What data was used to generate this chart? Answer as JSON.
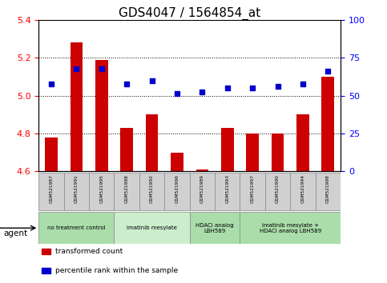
{
  "title": "GDS4047 / 1564854_at",
  "samples": [
    "GSM521987",
    "GSM521991",
    "GSM521995",
    "GSM521988",
    "GSM521992",
    "GSM521996",
    "GSM521989",
    "GSM521993",
    "GSM521997",
    "GSM521990",
    "GSM521994",
    "GSM521998"
  ],
  "bar_values": [
    4.78,
    5.28,
    5.19,
    4.83,
    4.9,
    4.7,
    4.61,
    4.83,
    4.8,
    4.8,
    4.9,
    5.1
  ],
  "scatter_values": [
    5.06,
    5.14,
    5.14,
    5.06,
    5.08,
    5.01,
    5.02,
    5.04,
    5.04,
    5.05,
    5.06,
    5.13
  ],
  "ylim": [
    4.6,
    5.4
  ],
  "yticks_left": [
    4.6,
    4.8,
    5.0,
    5.2,
    5.4
  ],
  "yticks_right": [
    0,
    25,
    50,
    75,
    100
  ],
  "bar_color": "#cc0000",
  "scatter_color": "#0000cc",
  "bar_bottom": 4.6,
  "agent_groups": [
    {
      "label": "no treatment control",
      "span": [
        0,
        3
      ],
      "color": "#aaddaa"
    },
    {
      "label": "imatinib mesylate",
      "span": [
        3,
        6
      ],
      "color": "#cceecc"
    },
    {
      "label": "HDACi analog\nLBH589",
      "span": [
        6,
        8
      ],
      "color": "#aaddaa"
    },
    {
      "label": "imatinib mesylate +\nHDACi analog LBH589",
      "span": [
        8,
        12
      ],
      "color": "#aaddaa"
    }
  ],
  "legend_items": [
    {
      "label": "transformed count",
      "color": "#cc0000"
    },
    {
      "label": "percentile rank within the sample",
      "color": "#0000cc"
    }
  ],
  "xlabel_agent": "agent",
  "sample_box_color": "#d0d0d0",
  "title_fontsize": 11,
  "tick_fontsize": 8,
  "bar_width": 0.5
}
